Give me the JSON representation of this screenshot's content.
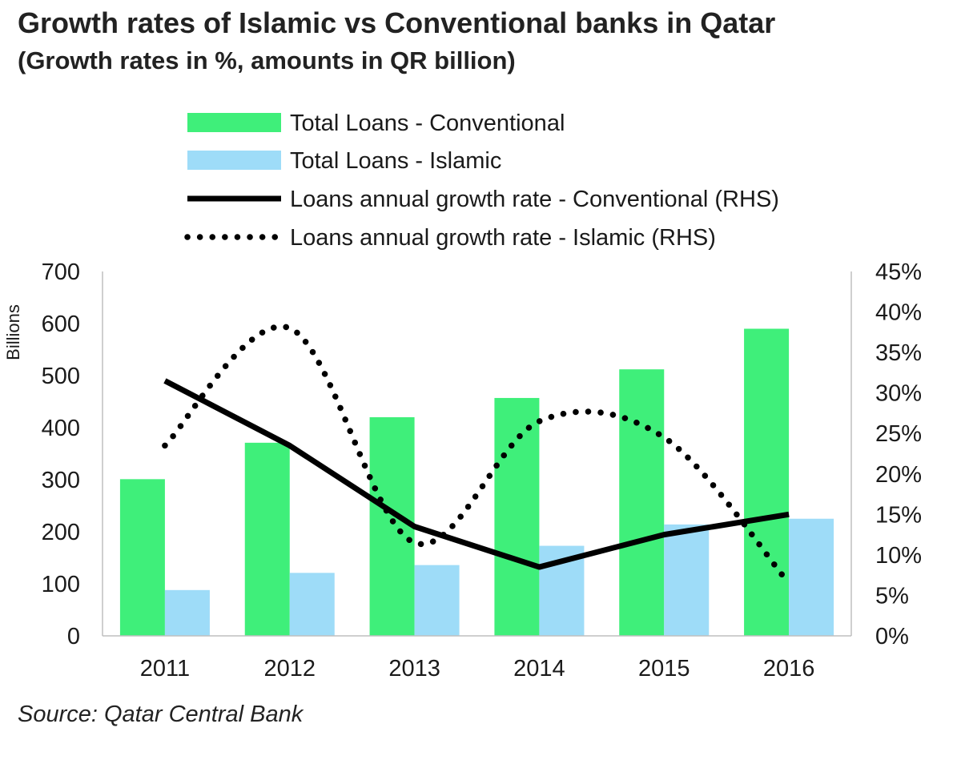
{
  "chart_data": {
    "type": "bar",
    "title": "Growth rates of Islamic vs Conventional banks in Qatar",
    "subtitle": "(Growth rates in %, amounts in QR billion)",
    "source": "Source: Qatar Central Bank",
    "categories": [
      "2011",
      "2012",
      "2013",
      "2014",
      "2015",
      "2016"
    ],
    "ylabel": "Billions",
    "ylim": [
      0,
      700
    ],
    "yticks": [
      "0",
      "100",
      "200",
      "300",
      "400",
      "500",
      "600",
      "700"
    ],
    "y2lim": [
      0,
      45
    ],
    "y2ticks": [
      "0%",
      "5%",
      "10%",
      "15%",
      "20%",
      "25%",
      "30%",
      "35%",
      "40%",
      "45%"
    ],
    "legend_position": "top",
    "series": [
      {
        "name": "Total Loans - Conventional",
        "kind": "bar",
        "axis": "left",
        "color": "#3fef7a",
        "values": [
          301,
          371,
          420,
          457,
          512,
          590
        ]
      },
      {
        "name": "Total Loans - Islamic",
        "kind": "bar",
        "axis": "left",
        "color": "#9edcf8",
        "values": [
          88,
          121,
          136,
          173,
          214,
          225
        ]
      },
      {
        "name": "Loans annual growth rate - Conventional (RHS)",
        "kind": "line",
        "style": "solid",
        "axis": "right",
        "color": "#000000",
        "values": [
          31.5,
          23.5,
          13.5,
          8.5,
          12.5,
          15.0
        ]
      },
      {
        "name": "Loans annual growth rate - Islamic (RHS)",
        "kind": "line",
        "style": "dotted",
        "axis": "right",
        "color": "#000000",
        "values": [
          23.5,
          38.0,
          11.5,
          26.5,
          24.5,
          6.5
        ]
      }
    ]
  }
}
